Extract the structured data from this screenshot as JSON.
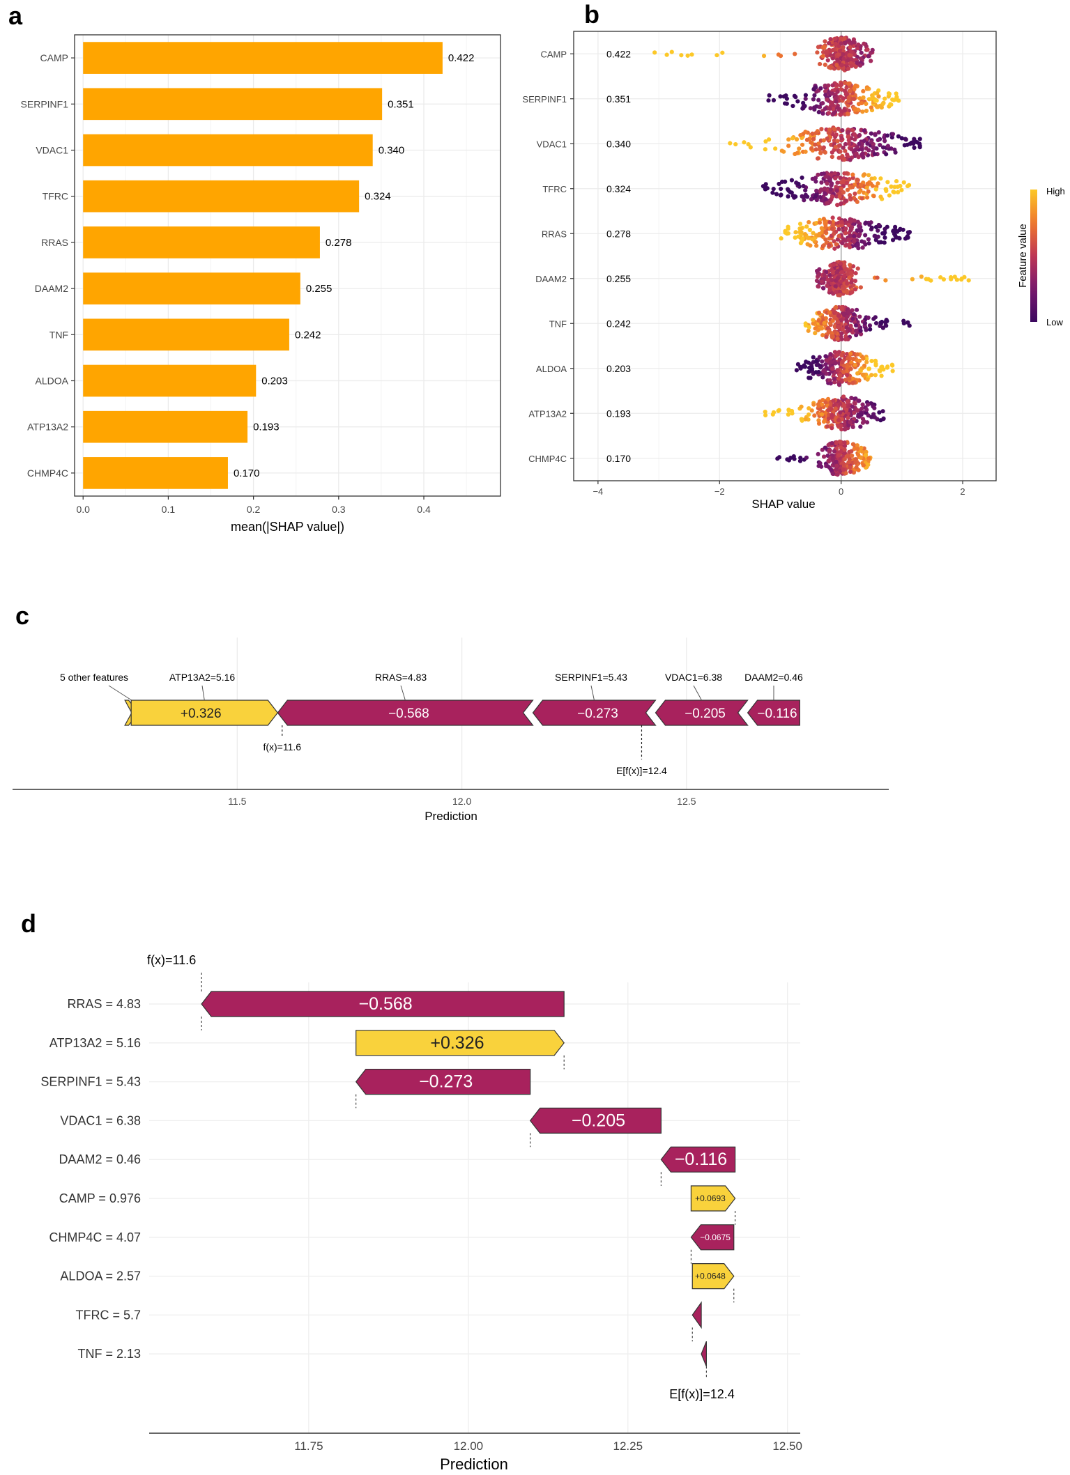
{
  "colors": {
    "bar": "#ffa500",
    "neg": "#a8225d",
    "pos": "#f9d23c",
    "grid": "#ebebeb",
    "axis": "#333333"
  },
  "panels": {
    "a": {
      "letter": "a"
    },
    "b": {
      "letter": "b"
    },
    "c": {
      "letter": "c"
    },
    "d": {
      "letter": "d"
    }
  },
  "chart_data": [
    {
      "panel": "a",
      "type": "bar",
      "orientation": "horizontal",
      "categories": [
        "CAMP",
        "SERPINF1",
        "VDAC1",
        "TFRC",
        "RRAS",
        "DAAM2",
        "TNF",
        "ALDOA",
        "ATP13A2",
        "CHMP4C"
      ],
      "values": [
        0.422,
        0.351,
        0.34,
        0.324,
        0.278,
        0.255,
        0.242,
        0.203,
        0.193,
        0.17
      ],
      "value_labels": [
        "0.422",
        "0.351",
        "0.340",
        "0.324",
        "0.278",
        "0.255",
        "0.242",
        "0.203",
        "0.193",
        "0.170"
      ],
      "xlabel": "mean(|SHAP value|)",
      "xlim": [
        -0.01,
        0.49
      ],
      "xticks": [
        0.0,
        0.1,
        0.2,
        0.3,
        0.4
      ],
      "xtick_labels": [
        "0.0",
        "0.1",
        "0.2",
        "0.3",
        "0.4"
      ],
      "grid": true
    },
    {
      "panel": "b",
      "type": "scatter",
      "subtype": "beeswarm",
      "features": [
        "CAMP",
        "SERPINF1",
        "VDAC1",
        "TFRC",
        "RRAS",
        "DAAM2",
        "TNF",
        "ALDOA",
        "ATP13A2",
        "CHMP4C"
      ],
      "mean_abs": [
        "0.422",
        "0.351",
        "0.340",
        "0.324",
        "0.278",
        "0.255",
        "0.242",
        "0.203",
        "0.193",
        "0.170"
      ],
      "xlabel": "SHAP value",
      "xlim": [
        -4.4,
        2.55
      ],
      "xticks": [
        -4,
        -2,
        0,
        2
      ],
      "xtick_labels": [
        "−4",
        "−2",
        "0",
        "2"
      ],
      "ranges": [
        [
          -3.1,
          0.52
        ],
        [
          -1.25,
          0.95
        ],
        [
          -1.9,
          1.3
        ],
        [
          -1.3,
          1.15
        ],
        [
          -1.0,
          1.15
        ],
        [
          -0.4,
          2.3
        ],
        [
          -0.6,
          1.15
        ],
        [
          -0.75,
          0.85
        ],
        [
          -1.25,
          0.7
        ],
        [
          -1.1,
          0.5
        ]
      ],
      "legend": {
        "title": "Feature value",
        "high": "High",
        "low": "Low",
        "placement": "right"
      }
    },
    {
      "panel": "c",
      "type": "force",
      "xlabel": "Prediction",
      "xlim": [
        11.0,
        12.95
      ],
      "xticks": [
        11.5,
        12.0,
        12.5
      ],
      "xtick_labels": [
        "11.5",
        "12.0",
        "12.5"
      ],
      "segments": [
        {
          "feature": "5 other features",
          "start": 11.28,
          "end": 11.25,
          "value": 0.03,
          "label": ""
        },
        {
          "feature": "ATP13A2=5.16",
          "start": 11.59,
          "end": 11.264,
          "value": 0.326,
          "label": "+0.326"
        },
        {
          "feature": "RRAS=4.83",
          "start": 11.59,
          "end": 12.158,
          "value": -0.568,
          "label": "−0.568"
        },
        {
          "feature": "SERPINF1=5.43",
          "start": 12.158,
          "end": 12.431,
          "value": -0.273,
          "label": "−0.273"
        },
        {
          "feature": "VDAC1=6.38",
          "start": 12.431,
          "end": 12.636,
          "value": -0.205,
          "label": "−0.205"
        },
        {
          "feature": "DAAM2=0.46",
          "start": 12.636,
          "end": 12.752,
          "value": -0.116,
          "label": "−0.116"
        }
      ],
      "fx": 11.6,
      "fx_label": "f(x)=11.6",
      "efx": 12.4,
      "efx_label": "E[f(x)]=12.4"
    },
    {
      "panel": "d",
      "type": "waterfall",
      "xlabel": "Prediction",
      "xlim": [
        11.5,
        12.52
      ],
      "xticks": [
        11.75,
        12.0,
        12.25,
        12.5
      ],
      "xtick_labels": [
        "11.75",
        "12.00",
        "12.25",
        "12.50"
      ],
      "rows": [
        {
          "feature": "RRAS = 4.83",
          "start": 12.15,
          "end": 11.582,
          "value": -0.568,
          "label": "−0.568"
        },
        {
          "feature": "ATP13A2 = 5.16",
          "start": 11.824,
          "end": 12.15,
          "value": 0.326,
          "label": "+0.326"
        },
        {
          "feature": "SERPINF1 = 5.43",
          "start": 12.097,
          "end": 11.824,
          "value": -0.273,
          "label": "−0.273"
        },
        {
          "feature": "VDAC1 = 6.38",
          "start": 12.302,
          "end": 12.097,
          "value": -0.205,
          "label": "−0.205"
        },
        {
          "feature": "DAAM2 = 0.46",
          "start": 12.418,
          "end": 12.302,
          "value": -0.116,
          "label": "−0.116"
        },
        {
          "feature": "CAMP = 0.976",
          "start": 12.349,
          "end": 12.418,
          "value": 0.0693,
          "label": "+0.0693"
        },
        {
          "feature": "CHMP4C = 4.07",
          "start": 12.416,
          "end": 12.349,
          "value": -0.0675,
          "label": "−0.0675"
        },
        {
          "feature": "ALDOA = 2.57",
          "start": 12.351,
          "end": 12.416,
          "value": 0.0648,
          "label": "+0.0648"
        },
        {
          "feature": "TFRC = 5.7",
          "start": 12.365,
          "end": 12.351,
          "value": -0.014,
          "label": ""
        },
        {
          "feature": "TNF = 2.13",
          "start": 12.373,
          "end": 12.365,
          "value": -0.008,
          "label": ""
        }
      ],
      "fx_label": "f(x)=11.6",
      "efx_label": "E[f(x)]=12.4"
    }
  ]
}
